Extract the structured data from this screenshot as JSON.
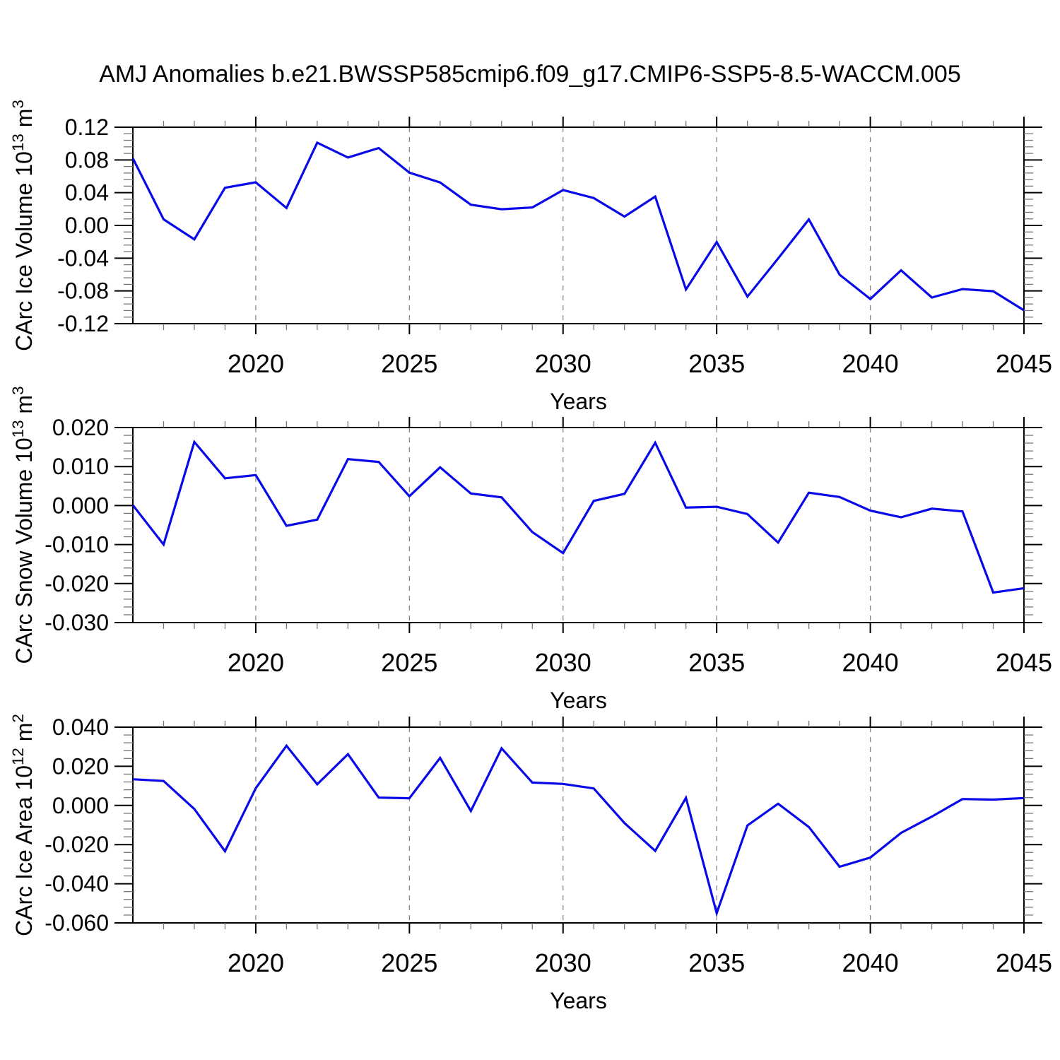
{
  "title": "AMJ Anomalies b.e21.BWSSP585cmip6.f09_g17.CMIP6-SSP5-8.5-WACCM.005",
  "style": {
    "line_color": "#0808e8",
    "axis_color": "#000000",
    "minor_tick_color": "#777777",
    "gridline_color": "#808080",
    "text_color": "#000000"
  },
  "chart_data": [
    {
      "type": "line",
      "xlabel": "Years",
      "ylabel": "CArc Ice Volume 10^{13} m^{3}",
      "x": [
        2016,
        2017,
        2018,
        2019,
        2020,
        2021,
        2022,
        2023,
        2024,
        2025,
        2026,
        2027,
        2028,
        2029,
        2030,
        2031,
        2032,
        2033,
        2034,
        2035,
        2036,
        2037,
        2038,
        2039,
        2040,
        2041,
        2042,
        2043,
        2044,
        2045
      ],
      "values": [
        0.082,
        0.0074,
        -0.017,
        0.046,
        0.0527,
        0.0213,
        0.1011,
        0.083,
        0.0945,
        0.0645,
        0.0525,
        0.0253,
        0.0198,
        0.0219,
        0.0432,
        0.0335,
        0.0108,
        0.0353,
        -0.0782,
        -0.0204,
        -0.0869,
        -0.0404,
        0.0073,
        -0.0602,
        -0.0899,
        -0.0548,
        -0.0881,
        -0.0778,
        -0.0804,
        -0.1037
      ],
      "xlim": [
        2016,
        2045
      ],
      "ylim": [
        -0.12,
        0.12
      ],
      "x_major_ticks": [
        2020,
        2025,
        2030,
        2035,
        2040,
        2045
      ],
      "x_minor_step": 1,
      "y_major_step": 0.04,
      "y_minor_step": 0.008,
      "y_tick_decimals": 2,
      "x_gridlines": [
        2020,
        2025,
        2030,
        2035,
        2040
      ],
      "grid_style": "vertical-dashed",
      "legend": "none"
    },
    {
      "type": "line",
      "xlabel": "Years",
      "ylabel": "CArc Snow Volume 10^{13} m^{3}",
      "x": [
        2016,
        2017,
        2018,
        2019,
        2020,
        2021,
        2022,
        2023,
        2024,
        2025,
        2026,
        2027,
        2028,
        2029,
        2030,
        2031,
        2032,
        2033,
        2034,
        2035,
        2036,
        2037,
        2038,
        2039,
        2040,
        2041,
        2042,
        2043,
        2044,
        2045
      ],
      "values": [
        0.0001,
        -0.01,
        0.0163,
        0.007,
        0.0078,
        -0.0052,
        -0.0036,
        0.0119,
        0.0112,
        0.0024,
        0.0098,
        0.0031,
        0.0021,
        -0.0068,
        -0.0122,
        0.0012,
        0.003,
        0.0161,
        -0.0005,
        -0.0003,
        -0.0022,
        -0.0095,
        0.0033,
        0.0022,
        -0.0013,
        -0.003,
        -0.0008,
        -0.0015,
        -0.0223,
        -0.0212
      ],
      "xlim": [
        2016,
        2045
      ],
      "ylim": [
        -0.03,
        0.02
      ],
      "x_major_ticks": [
        2020,
        2025,
        2030,
        2035,
        2040,
        2045
      ],
      "x_minor_step": 1,
      "y_major_step": 0.01,
      "y_minor_step": 0.002,
      "y_tick_decimals": 3,
      "x_gridlines": [
        2020,
        2025,
        2030,
        2035,
        2040
      ],
      "grid_style": "vertical-dashed",
      "legend": "none"
    },
    {
      "type": "line",
      "xlabel": "Years",
      "ylabel": "CArc Ice Area 10^{12} m^{2}",
      "x": [
        2016,
        2017,
        2018,
        2019,
        2020,
        2021,
        2022,
        2023,
        2024,
        2025,
        2026,
        2027,
        2028,
        2029,
        2030,
        2031,
        2032,
        2033,
        2034,
        2035,
        2036,
        2037,
        2038,
        2039,
        2040,
        2041,
        2042,
        2043,
        2044,
        2045
      ],
      "values": [
        0.0134,
        0.0125,
        -0.0018,
        -0.0234,
        0.0088,
        0.0305,
        0.0108,
        0.0262,
        0.004,
        0.0037,
        0.0243,
        -0.0028,
        0.0292,
        0.0117,
        0.011,
        0.0087,
        -0.009,
        -0.0232,
        0.0039,
        -0.055,
        -0.0102,
        0.0009,
        -0.011,
        -0.0313,
        -0.0266,
        -0.014,
        -0.0057,
        0.0033,
        0.003,
        0.0038
      ],
      "xlim": [
        2016,
        2045
      ],
      "ylim": [
        -0.06,
        0.04
      ],
      "x_major_ticks": [
        2020,
        2025,
        2030,
        2035,
        2040,
        2045
      ],
      "x_minor_step": 1,
      "y_major_step": 0.02,
      "y_minor_step": 0.004,
      "y_tick_decimals": 3,
      "x_gridlines": [
        2020,
        2025,
        2030,
        2035,
        2040
      ],
      "grid_style": "vertical-dashed",
      "legend": "none"
    }
  ]
}
